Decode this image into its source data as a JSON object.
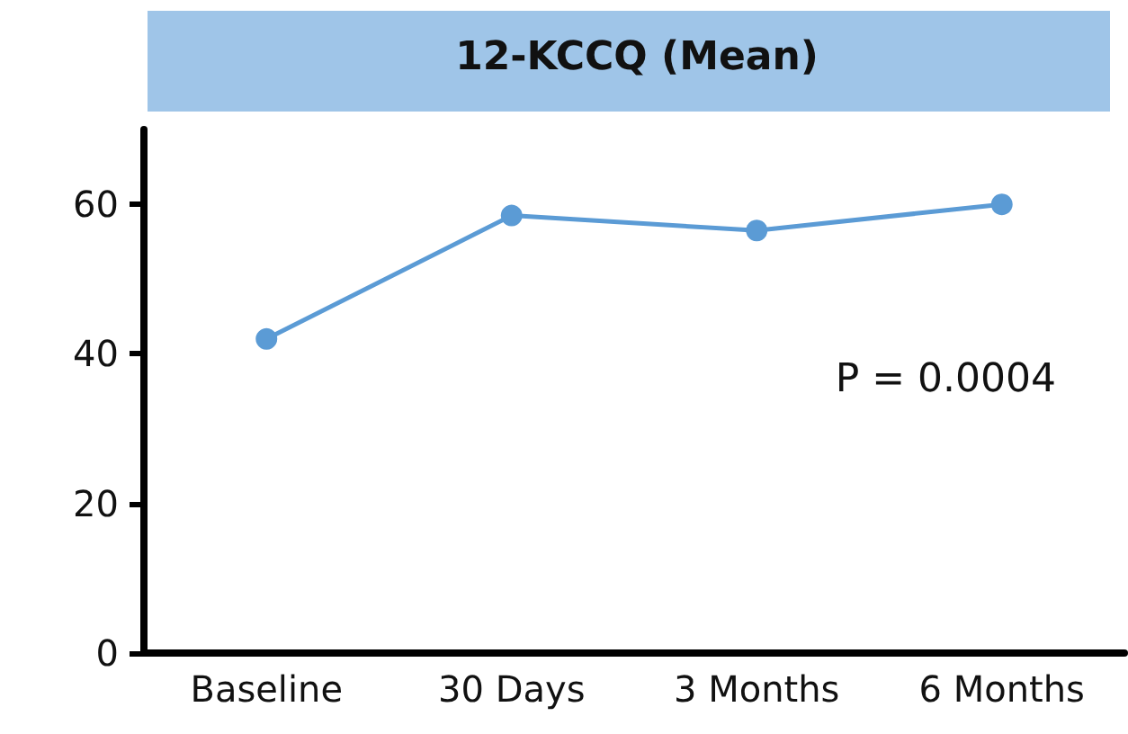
{
  "chart_data": {
    "type": "line",
    "title": "12-KCCQ (Mean)",
    "categories": [
      "Baseline",
      "30 Days",
      "3 Months",
      "6 Months"
    ],
    "series": [
      {
        "color": "#5b9bd5",
        "values": [
          42,
          58.5,
          56.5,
          60
        ]
      }
    ],
    "ylim": [
      0,
      70
    ],
    "yticks": [
      0,
      20,
      40,
      60
    ],
    "marker": "circle",
    "line_style": "solid",
    "annotations": [
      "P = 0.0004"
    ]
  }
}
